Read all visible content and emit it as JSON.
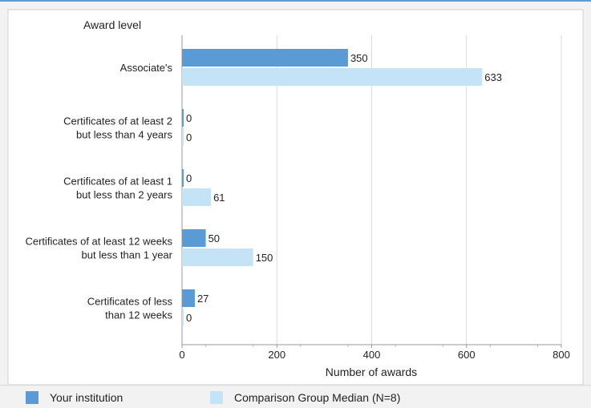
{
  "chart_data": {
    "type": "bar",
    "orientation": "horizontal",
    "title": "",
    "ylabel": "Award level",
    "xlabel": "Number of awards",
    "categories": [
      [
        "Associate's"
      ],
      [
        "Certificates of at least 2",
        "but less than 4 years"
      ],
      [
        "Certificates of at least 1",
        "but  less than 2 years"
      ],
      [
        "Certificates of at least 12 weeks",
        "but less than 1 year"
      ],
      [
        "Certificates of less",
        "than 12 weeks"
      ]
    ],
    "series": [
      {
        "name": "Your institution",
        "color": "#5b9bd5",
        "values": [
          350,
          0,
          0,
          50,
          27
        ]
      },
      {
        "name": "Comparison Group Median (N=8)",
        "color": "#c5e3f7",
        "values": [
          633,
          0,
          61,
          150,
          0
        ]
      }
    ],
    "xlim": [
      0,
      800
    ],
    "xticks": [
      0,
      200,
      400,
      600,
      800
    ],
    "grid": true,
    "legend_position": "bottom"
  }
}
